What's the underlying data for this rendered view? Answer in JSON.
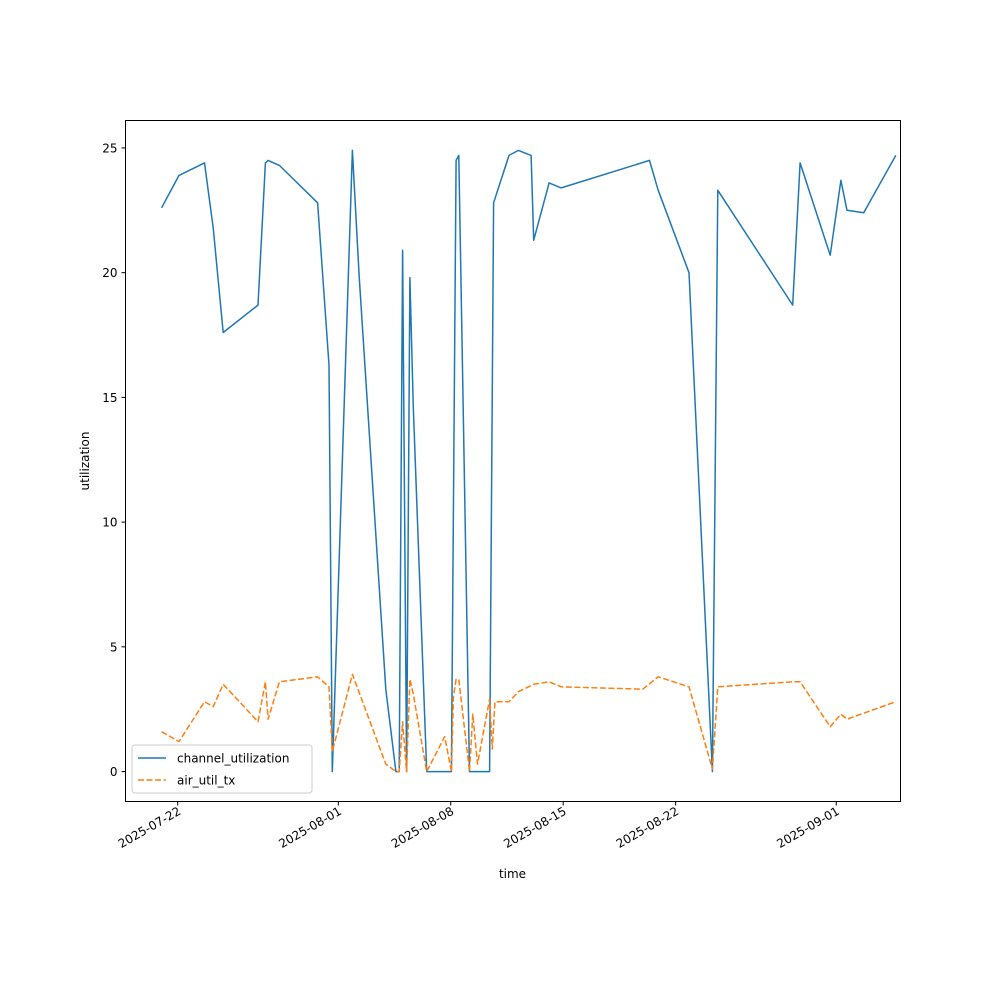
{
  "chart_data": {
    "type": "line",
    "title": "",
    "xlabel": "time",
    "ylabel": "utilization",
    "x_tick_labels": [
      "2025-07-22",
      "2025-08-01",
      "2025-08-08",
      "2025-08-15",
      "2025-08-22",
      "2025-09-01"
    ],
    "y_tick_labels": [
      "0",
      "5",
      "10",
      "15",
      "20",
      "25"
    ],
    "xlim": [
      "2025-07-18T18:00",
      "2025-09-05T00:00"
    ],
    "ylim": [
      -1.2,
      26.1
    ],
    "grid": false,
    "legend": {
      "placement": "lower-left",
      "entries": [
        "channel_utilization",
        "air_util_tx"
      ]
    },
    "colors": {
      "channel_utilization": "#1f77b4",
      "air_util_tx": "#ff7f0e"
    },
    "series": [
      {
        "name": "channel_utilization",
        "style": "solid",
        "points": [
          [
            "2025-07-21T00:00",
            22.6
          ],
          [
            "2025-07-22T02:00",
            23.9
          ],
          [
            "2025-07-23T16:00",
            24.4
          ],
          [
            "2025-07-24T05:00",
            21.8
          ],
          [
            "2025-07-24T20:00",
            17.6
          ],
          [
            "2025-07-27T00:00",
            18.7
          ],
          [
            "2025-07-27T11:00",
            24.4
          ],
          [
            "2025-07-27T15:00",
            24.5
          ],
          [
            "2025-07-28T08:00",
            24.3
          ],
          [
            "2025-07-30T17:00",
            22.8
          ],
          [
            "2025-07-31T10:00",
            16.3
          ],
          [
            "2025-07-31T15:00",
            0.0
          ],
          [
            "2025-08-01T21:00",
            24.9
          ],
          [
            "2025-08-02T07:00",
            19.9
          ],
          [
            "2025-08-03T23:00",
            3.3
          ],
          [
            "2025-08-04T14:00",
            0.0
          ],
          [
            "2025-08-04T19:00",
            0.0
          ],
          [
            "2025-08-05T00:00",
            20.9
          ],
          [
            "2025-08-05T06:00",
            0.0
          ],
          [
            "2025-08-05T11:00",
            19.8
          ],
          [
            "2025-08-05T16:00",
            14.6
          ],
          [
            "2025-08-06T12:00",
            0.0
          ],
          [
            "2025-08-08T01:00",
            0.0
          ],
          [
            "2025-08-08T08:00",
            24.5
          ],
          [
            "2025-08-08T12:00",
            24.7
          ],
          [
            "2025-08-09T04:00",
            0.0
          ],
          [
            "2025-08-10T10:00",
            0.0
          ],
          [
            "2025-08-10T16:00",
            22.8
          ],
          [
            "2025-08-11T15:00",
            24.7
          ],
          [
            "2025-08-12T05:00",
            24.9
          ],
          [
            "2025-08-13T00:00",
            24.7
          ],
          [
            "2025-08-13T04:00",
            21.3
          ],
          [
            "2025-08-14T03:00",
            23.6
          ],
          [
            "2025-08-14T21:00",
            23.4
          ],
          [
            "2025-08-20T09:00",
            24.5
          ],
          [
            "2025-08-20T22:00",
            23.3
          ],
          [
            "2025-08-22T20:00",
            20.0
          ],
          [
            "2025-08-24T07:00",
            0.0
          ],
          [
            "2025-08-24T15:00",
            23.3
          ],
          [
            "2025-08-29T07:00",
            18.7
          ],
          [
            "2025-08-29T18:00",
            24.4
          ],
          [
            "2025-08-31T15:00",
            20.7
          ],
          [
            "2025-09-01T07:00",
            23.7
          ],
          [
            "2025-09-01T16:00",
            22.5
          ],
          [
            "2025-09-02T17:00",
            22.4
          ],
          [
            "2025-09-04T17:00",
            24.7
          ]
        ]
      },
      {
        "name": "air_util_tx",
        "style": "dashed",
        "points": [
          [
            "2025-07-21T00:00",
            1.6
          ],
          [
            "2025-07-22T02:00",
            1.2
          ],
          [
            "2025-07-23T16:00",
            2.8
          ],
          [
            "2025-07-24T05:00",
            2.6
          ],
          [
            "2025-07-24T20:00",
            3.5
          ],
          [
            "2025-07-27T00:00",
            2.0
          ],
          [
            "2025-07-27T11:00",
            3.6
          ],
          [
            "2025-07-27T15:00",
            2.1
          ],
          [
            "2025-07-28T08:00",
            3.6
          ],
          [
            "2025-07-30T17:00",
            3.8
          ],
          [
            "2025-07-31T10:00",
            3.4
          ],
          [
            "2025-07-31T15:00",
            0.8
          ],
          [
            "2025-08-01T21:00",
            3.9
          ],
          [
            "2025-08-03T23:00",
            0.3
          ],
          [
            "2025-08-04T14:00",
            0.0
          ],
          [
            "2025-08-04T19:00",
            0.0
          ],
          [
            "2025-08-05T00:00",
            2.0
          ],
          [
            "2025-08-05T06:00",
            0.0
          ],
          [
            "2025-08-05T11:00",
            3.7
          ],
          [
            "2025-08-05T16:00",
            3.1
          ],
          [
            "2025-08-06T12:00",
            0.0
          ],
          [
            "2025-08-07T15:00",
            1.4
          ],
          [
            "2025-08-08T01:00",
            0.0
          ],
          [
            "2025-08-08T04:00",
            3.0
          ],
          [
            "2025-08-08T08:00",
            3.7
          ],
          [
            "2025-08-08T12:00",
            3.7
          ],
          [
            "2025-08-09T04:00",
            0.0
          ],
          [
            "2025-08-09T09:00",
            2.3
          ],
          [
            "2025-08-09T16:00",
            0.3
          ],
          [
            "2025-08-10T10:00",
            2.9
          ],
          [
            "2025-08-10T14:00",
            0.9
          ],
          [
            "2025-08-10T18:00",
            2.8
          ],
          [
            "2025-08-11T15:00",
            2.8
          ],
          [
            "2025-08-12T05:00",
            3.2
          ],
          [
            "2025-08-13T04:00",
            3.5
          ],
          [
            "2025-08-14T03:00",
            3.6
          ],
          [
            "2025-08-14T21:00",
            3.4
          ],
          [
            "2025-08-19T23:00",
            3.3
          ],
          [
            "2025-08-20T22:00",
            3.8
          ],
          [
            "2025-08-22T20:00",
            3.4
          ],
          [
            "2025-08-24T07:00",
            0.1
          ],
          [
            "2025-08-24T15:00",
            3.4
          ],
          [
            "2025-08-29T07:00",
            3.6
          ],
          [
            "2025-08-29T18:00",
            3.6
          ],
          [
            "2025-08-31T15:00",
            1.8
          ],
          [
            "2025-09-01T07:00",
            2.3
          ],
          [
            "2025-09-01T16:00",
            2.1
          ],
          [
            "2025-09-04T17:00",
            2.8
          ]
        ]
      }
    ]
  }
}
